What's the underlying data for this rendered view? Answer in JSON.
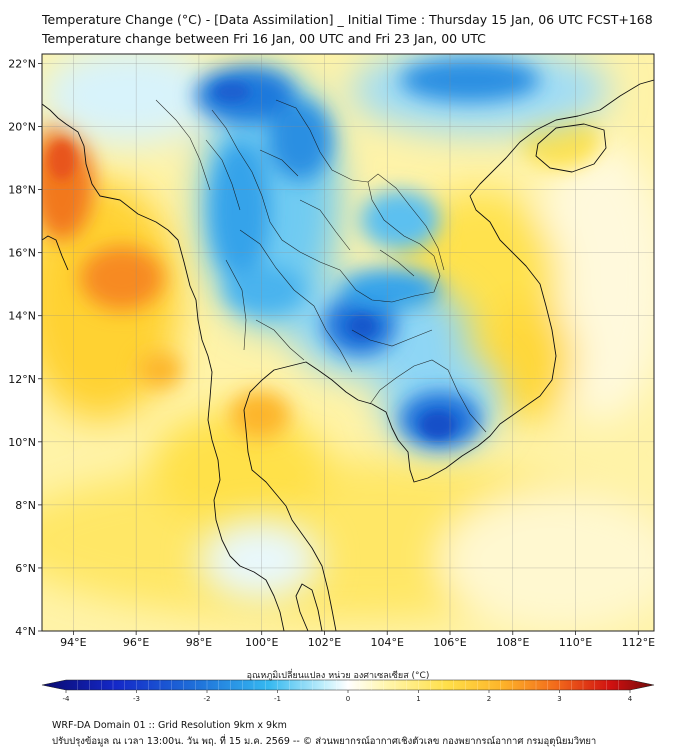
{
  "header": {
    "title_line1": "Temperature Change (°C) - [Data Assimilation] _ Initial Time : Thursday 15 Jan, 06 UTC FCST+168",
    "title_line2": "Temperature change between Fri 16 Jan, 00 UTC and Fri 23 Jan, 00 UTC"
  },
  "map": {
    "lat_labels": [
      "22°N",
      "20°N",
      "18°N",
      "16°N",
      "14°N",
      "12°N",
      "10°N",
      "8°N",
      "6°N",
      "4°N"
    ],
    "lon_labels": [
      "94°E",
      "96°E",
      "98°E",
      "100°E",
      "102°E",
      "104°E",
      "106°E",
      "108°E",
      "110°E",
      "112°E"
    ],
    "lat_range": [
      4,
      22.3
    ],
    "lon_range": [
      93,
      112.5
    ]
  },
  "colorbar": {
    "title": "อุณหภูมิเปลี่ยนแปลง หน่วย องศาเซลเซียส (°C)",
    "ticks": [
      "-4",
      "-3",
      "-2",
      "-1",
      "0",
      "1",
      "2",
      "3",
      "4"
    ],
    "range": [
      -4,
      4
    ]
  },
  "footer": {
    "line1": "WRF-DA Domain 01 :: Grid Resolution 9km x 9km",
    "line2": "ปรับปรุงข้อมูล ณ เวลา 13:00น. วัน พฤ. ที่ 15 ม.ค. 2569 -- © ส่วนพยากรณ์อากาศเชิงตัวเลข กองพยากรณ์อากาศ กรมอุตุนิยมวิทยา"
  },
  "colors": {
    "cold_strong": "#1e6fd9",
    "cold": "#35b8f0",
    "neutral": "#fffbe0",
    "warm": "#ffe04a",
    "hot": "#f26a1b"
  }
}
